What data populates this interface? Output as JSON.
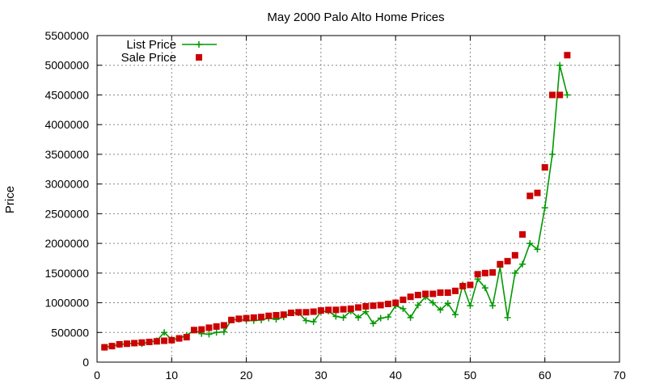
{
  "chart_data": {
    "type": "line",
    "title": "May 2000 Palo Alto Home Prices",
    "xlabel": "",
    "ylabel": "Price",
    "xlim": [
      0,
      70
    ],
    "ylim": [
      0,
      5500000
    ],
    "x_ticks": [
      0,
      10,
      20,
      30,
      40,
      50,
      60,
      70
    ],
    "y_ticks": [
      0,
      500000,
      1000000,
      1500000,
      2000000,
      2500000,
      3000000,
      3500000,
      4000000,
      4500000,
      5000000,
      5500000
    ],
    "grid": true,
    "legend_position": "top-left",
    "x": [
      1,
      2,
      3,
      4,
      5,
      6,
      7,
      8,
      9,
      10,
      11,
      12,
      13,
      14,
      15,
      16,
      17,
      18,
      19,
      20,
      21,
      22,
      23,
      24,
      25,
      26,
      27,
      28,
      29,
      30,
      31,
      32,
      33,
      34,
      35,
      36,
      37,
      38,
      39,
      40,
      41,
      42,
      43,
      44,
      45,
      46,
      47,
      48,
      49,
      50,
      51,
      52,
      53,
      54,
      55,
      56,
      57,
      58,
      59,
      60,
      61,
      62,
      63
    ],
    "series": [
      {
        "name": "List Price",
        "style": "line-points",
        "color": "#009900",
        "values": [
          250000,
          270000,
          295000,
          310000,
          320000,
          310000,
          340000,
          360000,
          500000,
          380000,
          400000,
          450000,
          540000,
          480000,
          470000,
          500000,
          510000,
          710000,
          720000,
          700000,
          700000,
          710000,
          740000,
          720000,
          760000,
          830000,
          830000,
          700000,
          680000,
          850000,
          860000,
          770000,
          750000,
          860000,
          750000,
          850000,
          650000,
          740000,
          760000,
          950000,
          900000,
          750000,
          960000,
          1100000,
          1000000,
          880000,
          990000,
          800000,
          1300000,
          950000,
          1400000,
          1250000,
          950000,
          1600000,
          750000,
          1500000,
          1650000,
          2000000,
          1900000,
          2600000,
          3500000,
          5000000,
          4500000
        ]
      },
      {
        "name": "Sale Price",
        "style": "points",
        "color": "#cc0000",
        "values": [
          250000,
          270000,
          300000,
          310000,
          320000,
          330000,
          340000,
          350000,
          360000,
          370000,
          400000,
          420000,
          540000,
          550000,
          580000,
          600000,
          620000,
          710000,
          730000,
          740000,
          750000,
          760000,
          780000,
          790000,
          800000,
          830000,
          840000,
          840000,
          850000,
          870000,
          880000,
          880000,
          890000,
          900000,
          920000,
          940000,
          950000,
          960000,
          980000,
          1000000,
          1050000,
          1100000,
          1130000,
          1150000,
          1150000,
          1170000,
          1170000,
          1200000,
          1280000,
          1300000,
          1480000,
          1500000,
          1510000,
          1650000,
          1700000,
          1800000,
          2150000,
          2800000,
          2850000,
          3280000,
          4500000,
          4500000,
          5170000
        ]
      }
    ]
  }
}
